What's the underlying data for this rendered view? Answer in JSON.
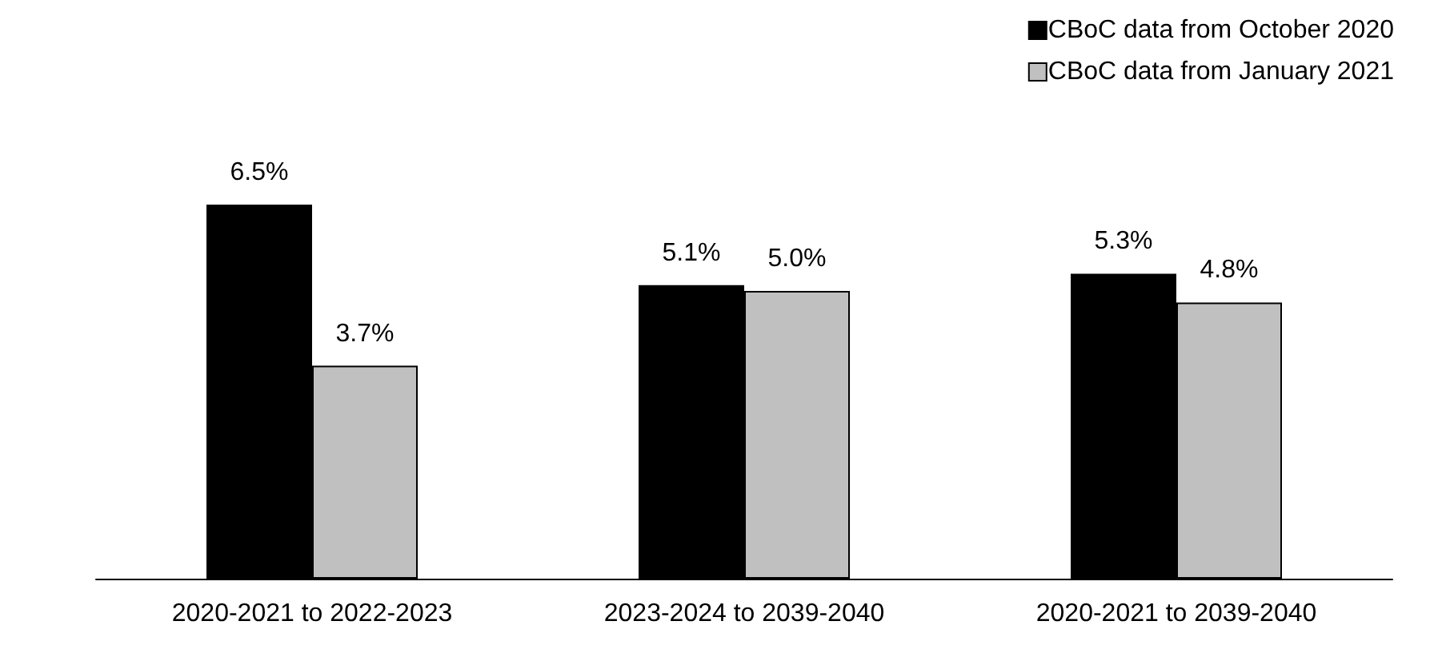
{
  "chart_data": {
    "type": "bar",
    "categories": [
      "2020-2021 to 2022-2023",
      "2023-2024 to 2039-2040",
      "2020-2021 to 2039-2040"
    ],
    "series": [
      {
        "name": "CBoC data from October 2020",
        "color": "#000000",
        "values": [
          6.5,
          5.1,
          5.3
        ],
        "value_labels": [
          "6.5%",
          "5.1%",
          "5.3%"
        ]
      },
      {
        "name": "CBoC data from January 2021",
        "color": "#c0c0c0",
        "values": [
          3.7,
          5.0,
          4.8
        ],
        "value_labels": [
          "3.7%",
          "5.0%",
          "4.8%"
        ]
      }
    ],
    "legend": "top right",
    "grid": false
  }
}
